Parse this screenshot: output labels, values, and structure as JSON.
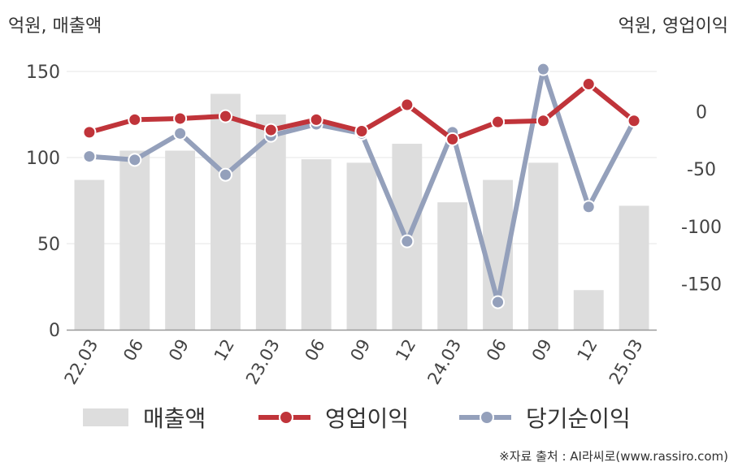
{
  "chart_data": {
    "type": "bar+line",
    "y_left_label": "억원, 매출액",
    "y_right_label": "억원, 영업이익",
    "categories": [
      "22.03",
      "06",
      "09",
      "12",
      "23.03",
      "06",
      "09",
      "12",
      "24.03",
      "06",
      "09",
      "12",
      "25.03"
    ],
    "y_left": {
      "range": [
        0,
        150
      ],
      "ticks": [
        0,
        50,
        100,
        150
      ]
    },
    "y_right": {
      "range": [
        -190,
        35
      ],
      "ticks": [
        0,
        -50,
        -100,
        -150
      ]
    },
    "series": [
      {
        "name": "매출액",
        "type": "bar",
        "axis": "left",
        "color": "#dddddd",
        "values": [
          87,
          104,
          104,
          137,
          125,
          99,
          97,
          108,
          74,
          87,
          97,
          23,
          72
        ]
      },
      {
        "name": "영업이익",
        "type": "line",
        "axis": "right",
        "color": "#c0343a",
        "values": [
          -18,
          -7,
          -6,
          -4,
          -16,
          -7,
          -17,
          6,
          -24,
          -9,
          -8,
          24,
          -8
        ]
      },
      {
        "name": "당기순이익",
        "type": "line",
        "axis": "right",
        "color": "#94a0bb",
        "values": [
          -39,
          -42,
          -19,
          -55,
          -21,
          -11,
          -19,
          -113,
          -18,
          -166,
          37,
          -83,
          -8
        ]
      }
    ],
    "grid": true,
    "legend": "bottom"
  },
  "legend": {
    "revenue": "매출액",
    "operating_profit": "영업이익",
    "net_income": "당기순이익"
  },
  "source": "※자료 출처 : AI라씨로(www.rassiro.com)"
}
